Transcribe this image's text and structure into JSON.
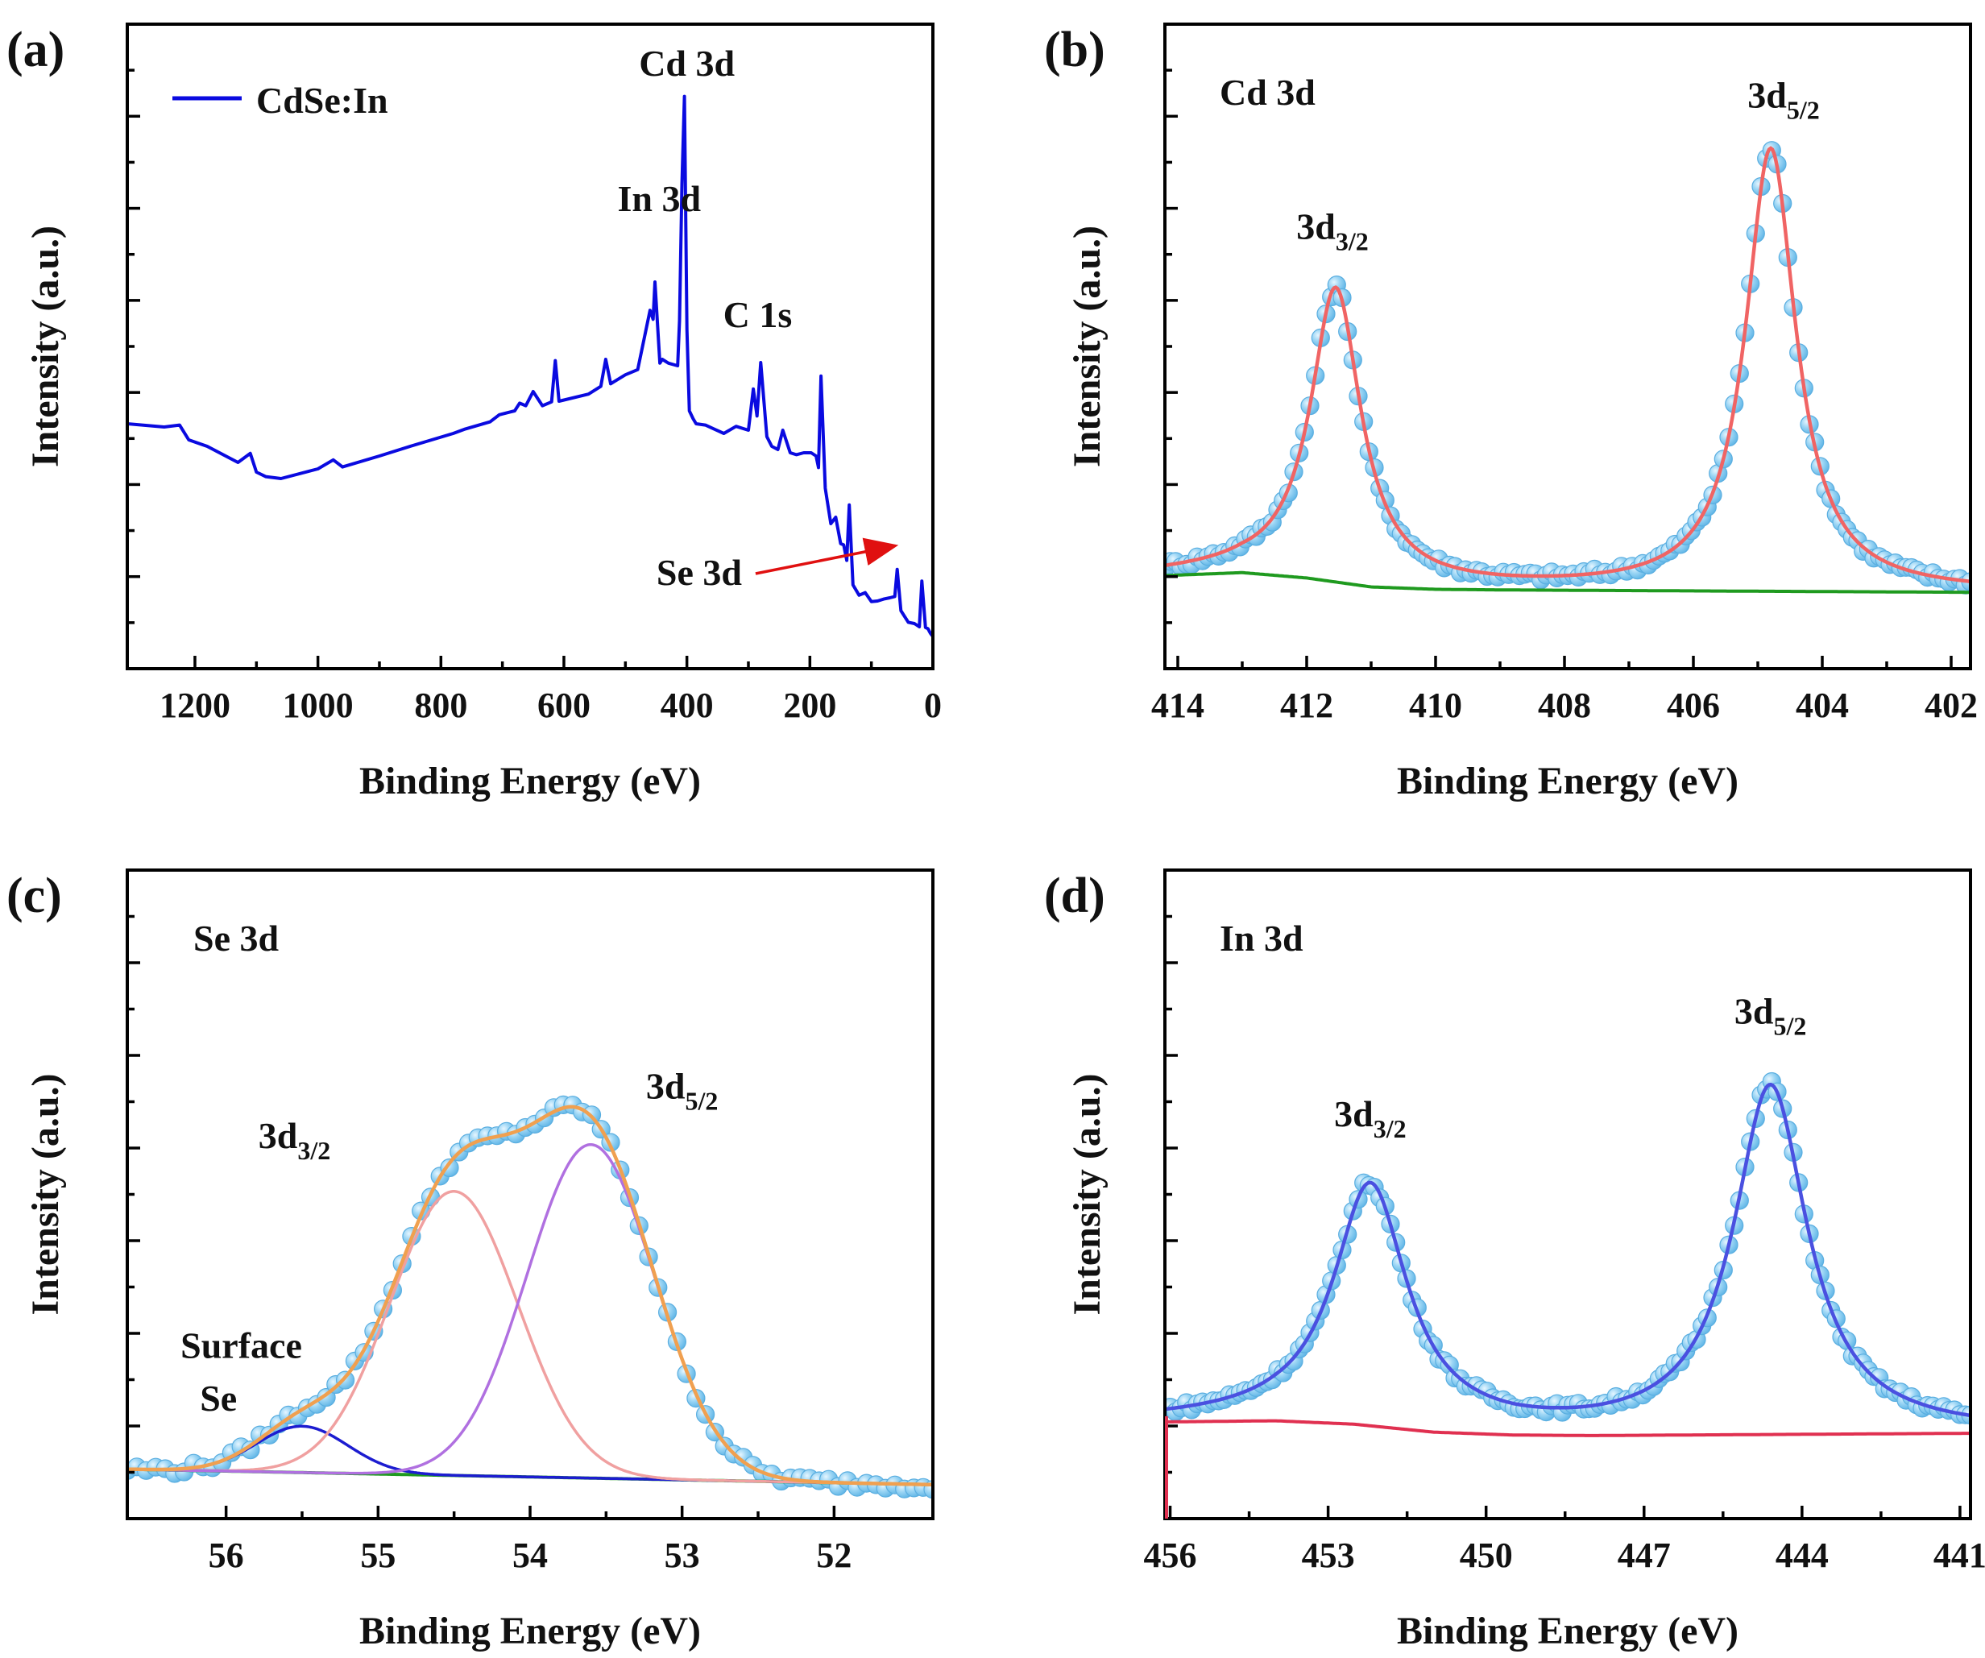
{
  "chart_data": [
    {
      "id": "a",
      "type": "line",
      "panel_label": "(a)",
      "xlabel": "Binding Energy (eV)",
      "ylabel": "Intensity (a.u.)",
      "xlim": [
        1310,
        0
      ],
      "ylim": [
        0,
        100
      ],
      "x_reversed": true,
      "xticks": [
        1200,
        1000,
        800,
        600,
        400,
        200,
        0
      ],
      "grid": false,
      "legend": {
        "position": "top-left",
        "entries": [
          "CdSe:In"
        ]
      },
      "series": [
        {
          "name": "CdSe:In",
          "color": "#0a0ae0",
          "x": [
            1310,
            1250,
            1225,
            1210,
            1180,
            1130,
            1110,
            1100,
            1085,
            1060,
            1000,
            975,
            960,
            900,
            850,
            780,
            760,
            720,
            705,
            680,
            672,
            662,
            650,
            635,
            620,
            614,
            608,
            560,
            540,
            532,
            524,
            500,
            480,
            460,
            455,
            452,
            448,
            444,
            440,
            430,
            415,
            412,
            408,
            404,
            400,
            396,
            390,
            385,
            370,
            340,
            320,
            300,
            292,
            286,
            280,
            270,
            262,
            252,
            244,
            232,
            222,
            210,
            198,
            190,
            186,
            182,
            175,
            166,
            158,
            150,
            145,
            140,
            136,
            130,
            120,
            110,
            100,
            90,
            80,
            70,
            62,
            58,
            52,
            40,
            30,
            22,
            18,
            12,
            8,
            4,
            0
          ],
          "y": [
            38,
            37.5,
            37.8,
            35.5,
            34.5,
            32,
            33.4,
            30.5,
            29.8,
            29.5,
            31,
            32.4,
            31.3,
            33,
            34.5,
            36.5,
            37.2,
            38.3,
            39.4,
            40,
            41.2,
            40.8,
            43,
            40.8,
            41.4,
            47.8,
            41.5,
            42.6,
            43.8,
            48,
            44.2,
            45.6,
            46.4,
            55.6,
            54.2,
            60,
            53.8,
            47.4,
            48,
            47.4,
            47,
            54,
            75.2,
            88.8,
            52.6,
            40,
            38.8,
            38,
            37.8,
            36.5,
            37.6,
            37,
            43.4,
            39.2,
            47.5,
            36,
            34.5,
            34,
            37,
            33.5,
            33.2,
            33.5,
            33.5,
            33,
            31.2,
            45.4,
            28,
            22.5,
            23.5,
            19.4,
            19.2,
            16.8,
            25.4,
            13,
            11.4,
            11.8,
            10.4,
            10.5,
            10.8,
            11,
            11.2,
            15.4,
            9,
            7.2,
            7,
            6.5,
            13.6,
            6.4,
            6.2,
            5.5,
            5
          ]
        }
      ],
      "annotations": [
        {
          "text": "Cd 3d",
          "x": 400,
          "y": 92
        },
        {
          "text": "In 3d",
          "x": 445,
          "y": 71
        },
        {
          "text": "C 1s",
          "x": 285,
          "y": 53
        },
        {
          "text": "Se 3d",
          "x": 380,
          "y": 13,
          "arrow_to": [
            65,
            19
          ]
        }
      ]
    },
    {
      "id": "b",
      "type": "scatter",
      "panel_label": "(b)",
      "xlabel": "Binding Energy (eV)",
      "ylabel": "Intensity (a.u.)",
      "xlim": [
        414.2,
        401.7
      ],
      "ylim": [
        -8,
        100
      ],
      "x_reversed": true,
      "xticks": [
        414,
        412,
        410,
        408,
        406,
        404,
        402
      ],
      "grid": false,
      "inset_title": "Cd 3d",
      "fit_model": {
        "peaks": [
          {
            "label": "3d3/2",
            "center": 411.55,
            "height": 49,
            "fwhm": 0.95
          },
          {
            "label": "3d5/2",
            "center": 404.8,
            "height": 74,
            "fwhm": 0.95
          }
        ],
        "background": {
          "x": [
            414.2,
            413.0,
            412.0,
            411.0,
            410.0,
            409.0,
            401.7
          ],
          "y": [
            7.6,
            8.1,
            7.2,
            5.7,
            5.3,
            5.2,
            4.8
          ]
        }
      },
      "series": [
        {
          "name": "",
          "kind": "markers",
          "color": "#7ec8f0"
        },
        {
          "name": "",
          "kind": "fit",
          "color": "#f06464"
        },
        {
          "name": "",
          "kind": "background",
          "color": "#1f9a1f"
        }
      ],
      "annotations": [
        {
          "text": "3d",
          "sub": "3/2",
          "x": 411.6,
          "y": 64
        },
        {
          "text": "3d",
          "sub": "5/2",
          "x": 404.6,
          "y": 86
        }
      ]
    },
    {
      "id": "c",
      "type": "scatter",
      "panel_label": "(c)",
      "xlabel": "Binding Energy (eV)",
      "ylabel": "Intensity (a.u.)",
      "xlim": [
        56.65,
        51.35
      ],
      "ylim": [
        -5,
        100
      ],
      "x_reversed": true,
      "xticks": [
        56,
        55,
        54,
        53,
        52
      ],
      "grid": false,
      "inset_title": "Se 3d",
      "fit_model": {
        "peaks": [
          {
            "label": "Surface Se",
            "center": 55.5,
            "height": 7.5,
            "sigma": 0.3,
            "color": "#1c1cd0"
          },
          {
            "label": "3d3/2",
            "center": 54.5,
            "height": 46,
            "sigma": 0.42,
            "color": "#f0a0a0"
          },
          {
            "label": "3d5/2",
            "center": 53.6,
            "height": 54,
            "sigma": 0.42,
            "color": "#b070e0"
          }
        ],
        "background": {
          "x": [
            56.65,
            51.35
          ],
          "y": [
            3,
            0.5
          ]
        }
      },
      "series": [
        {
          "name": "",
          "kind": "markers",
          "color": "#7ec8f0"
        },
        {
          "name": "",
          "kind": "envelope",
          "color": "#f0a050"
        },
        {
          "name": "",
          "kind": "background",
          "color": "#1f9a1f"
        }
      ],
      "annotations": [
        {
          "text": "3d",
          "sub": "3/2",
          "x": 55.55,
          "y": 55
        },
        {
          "text": "3d",
          "sub": "5/2",
          "x": 53.0,
          "y": 63
        },
        {
          "text": "Surface",
          "x": 55.9,
          "y": 21
        },
        {
          "text": "Se",
          "x": 56.05,
          "y": 12.5
        }
      ]
    },
    {
      "id": "d",
      "type": "scatter",
      "panel_label": "(d)",
      "xlabel": "Binding Energy (eV)",
      "ylabel": "Intensity (a.u.)",
      "xlim": [
        456.1,
        440.8
      ],
      "ylim": [
        -14,
        100
      ],
      "x_reversed": true,
      "xticks": [
        456,
        453,
        450,
        447,
        444,
        441
      ],
      "grid": false,
      "inset_title": "In 3d",
      "fit_model": {
        "peaks": [
          {
            "label": "3d3/2",
            "center": 452.2,
            "height": 42,
            "fwhm": 1.7
          },
          {
            "label": "3d5/2",
            "center": 444.6,
            "height": 61,
            "fwhm": 1.7
          }
        ],
        "background": {
          "x": [
            456.1,
            454.0,
            452.5,
            451.0,
            449.5,
            448.0,
            440.8
          ],
          "y": [
            3,
            3.2,
            2.6,
            1.2,
            0.7,
            0.6,
            1.0
          ]
        }
      },
      "series": [
        {
          "name": "",
          "kind": "markers",
          "color": "#7ec8f0"
        },
        {
          "name": "",
          "kind": "fit",
          "color": "#4a50e0"
        },
        {
          "name": "",
          "kind": "background",
          "color": "#e03050"
        }
      ],
      "annotations": [
        {
          "text": "3d",
          "sub": "3/2",
          "x": 452.2,
          "y": 55
        },
        {
          "text": "3d",
          "sub": "5/2",
          "x": 444.6,
          "y": 73
        }
      ]
    }
  ]
}
